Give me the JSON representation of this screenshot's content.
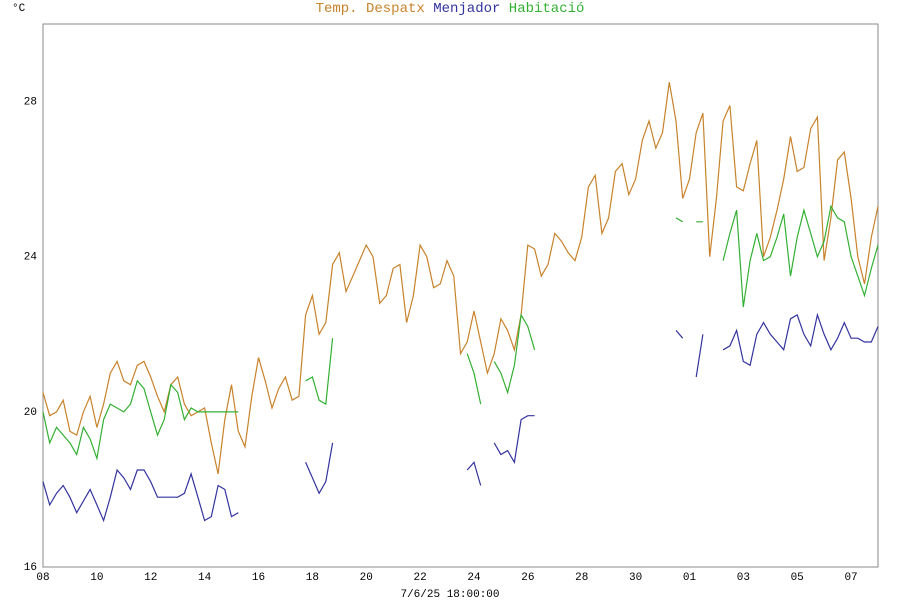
{
  "chart_data": {
    "type": "line",
    "title": "Temp.",
    "y_label": "°C",
    "x_label": "7/6/25 18:00:00",
    "categories": [
      "08",
      null,
      null,
      null,
      null,
      null,
      null,
      null,
      "10",
      null,
      null,
      null,
      null,
      null,
      null,
      null,
      "12",
      null,
      null,
      null,
      null,
      null,
      null,
      null,
      "14",
      null,
      null,
      null,
      null,
      null,
      null,
      null,
      "16",
      null,
      null,
      null,
      null,
      null,
      null,
      null,
      "18",
      null,
      null,
      null,
      null,
      null,
      null,
      null,
      "20",
      null,
      null,
      null,
      null,
      null,
      null,
      null,
      "22",
      null,
      null,
      null,
      null,
      null,
      null,
      null,
      "24",
      null,
      null,
      null,
      null,
      null,
      null,
      null,
      "26",
      null,
      null,
      null,
      null,
      null,
      null,
      null,
      "28",
      null,
      null,
      null,
      null,
      null,
      null,
      null,
      "30",
      null,
      null,
      null,
      null,
      null,
      null,
      null,
      "01",
      null,
      null,
      null,
      null,
      null,
      null,
      null,
      "03",
      null,
      null,
      null,
      null,
      null,
      null,
      null,
      "05",
      null,
      null,
      null,
      null,
      null,
      null,
      null,
      "07",
      null,
      null,
      null,
      null
    ],
    "series": [
      {
        "name": "Despatx",
        "color": "#c8822a",
        "values": [
          20.5,
          19.9,
          20.0,
          20.3,
          19.5,
          19.4,
          20.0,
          20.4,
          19.6,
          20.2,
          21.0,
          21.3,
          20.8,
          20.7,
          21.2,
          21.3,
          20.9,
          20.4,
          20.0,
          20.7,
          20.9,
          20.2,
          19.9,
          20.0,
          20.1,
          19.2,
          18.4,
          19.8,
          20.7,
          19.5,
          19.1,
          20.4,
          21.4,
          20.8,
          20.1,
          20.6,
          20.9,
          20.3,
          20.4,
          22.5,
          23.0,
          22.0,
          22.3,
          23.8,
          24.1,
          23.1,
          23.5,
          23.9,
          24.3,
          24.0,
          22.8,
          23.0,
          23.7,
          23.8,
          22.3,
          23.0,
          24.3,
          24.0,
          23.2,
          23.3,
          23.9,
          23.5,
          21.5,
          21.8,
          22.6,
          21.8,
          21.0,
          21.5,
          22.4,
          22.1,
          21.6,
          22.5,
          24.3,
          24.2,
          23.5,
          23.8,
          24.6,
          24.4,
          24.1,
          23.9,
          24.5,
          25.8,
          26.1,
          24.6,
          25.0,
          26.2,
          26.4,
          25.6,
          26.0,
          27.0,
          27.5,
          26.8,
          27.2,
          28.5,
          27.5,
          25.5,
          26.0,
          27.2,
          27.7,
          24.0,
          25.5,
          27.5,
          27.9,
          25.8,
          25.7,
          26.4,
          27.0,
          24.0,
          24.5,
          25.2,
          26.0,
          27.1,
          26.2,
          26.3,
          27.3,
          27.6,
          23.9,
          25.0,
          26.5,
          26.7,
          25.5,
          24.0,
          23.3,
          24.5,
          25.3
        ]
      },
      {
        "name": "Menjador",
        "color": "#33339f",
        "values": [
          18.2,
          17.6,
          17.9,
          18.1,
          17.8,
          17.4,
          17.7,
          18.0,
          17.6,
          17.2,
          17.8,
          18.5,
          18.3,
          18.0,
          18.5,
          18.5,
          18.2,
          17.8,
          17.8,
          17.8,
          17.8,
          17.9,
          18.4,
          17.8,
          17.2,
          17.3,
          18.1,
          18.0,
          17.3,
          17.4,
          null,
          null,
          null,
          null,
          null,
          null,
          null,
          null,
          null,
          18.7,
          18.3,
          17.9,
          18.2,
          19.2,
          null,
          null,
          null,
          null,
          null,
          null,
          null,
          null,
          null,
          null,
          null,
          null,
          null,
          null,
          null,
          null,
          null,
          null,
          null,
          18.5,
          18.7,
          18.1,
          null,
          19.2,
          18.9,
          19.0,
          18.7,
          19.8,
          19.9,
          19.9,
          null,
          null,
          null,
          null,
          null,
          null,
          null,
          null,
          null,
          null,
          null,
          null,
          null,
          null,
          null,
          null,
          null,
          null,
          null,
          null,
          22.1,
          21.9,
          null,
          20.9,
          22.0,
          null,
          null,
          21.6,
          21.7,
          22.1,
          21.3,
          21.2,
          22.0,
          22.3,
          22.0,
          21.8,
          21.6,
          22.4,
          22.5,
          22.0,
          21.7,
          22.5,
          22.0,
          21.6,
          21.9,
          22.3,
          21.9,
          21.9,
          21.8,
          21.8,
          22.2
        ]
      },
      {
        "name": "Habitació",
        "color": "#33b033",
        "values": [
          20.0,
          19.2,
          19.6,
          19.4,
          19.2,
          18.9,
          19.6,
          19.3,
          18.8,
          19.8,
          20.2,
          20.1,
          20.0,
          20.2,
          20.8,
          20.6,
          20.0,
          19.4,
          19.8,
          20.7,
          20.5,
          19.8,
          20.1,
          20.0,
          20.0,
          20.0,
          20.0,
          20.0,
          20.0,
          20.0,
          null,
          null,
          null,
          null,
          null,
          null,
          null,
          null,
          null,
          20.8,
          20.9,
          20.3,
          20.2,
          21.9,
          null,
          null,
          null,
          null,
          null,
          null,
          null,
          null,
          null,
          null,
          null,
          null,
          null,
          null,
          null,
          null,
          null,
          null,
          null,
          21.5,
          21.0,
          20.2,
          null,
          21.3,
          21.0,
          20.5,
          21.2,
          22.5,
          22.2,
          21.6,
          null,
          null,
          null,
          null,
          null,
          null,
          null,
          null,
          null,
          null,
          null,
          null,
          null,
          null,
          null,
          null,
          null,
          null,
          null,
          null,
          25.0,
          24.9,
          null,
          24.9,
          24.9,
          null,
          null,
          23.9,
          24.6,
          25.2,
          22.7,
          23.9,
          24.6,
          23.9,
          24.0,
          24.5,
          25.1,
          23.5,
          24.5,
          25.2,
          24.6,
          24.0,
          24.4,
          25.3,
          25.0,
          24.9,
          24.0,
          23.5,
          23.0,
          23.7,
          24.3
        ]
      }
    ],
    "ylim": [
      16,
      30
    ],
    "yticks": [
      16,
      20,
      24,
      28
    ],
    "ygrid": [
      18,
      22,
      26
    ],
    "grid": true
  }
}
